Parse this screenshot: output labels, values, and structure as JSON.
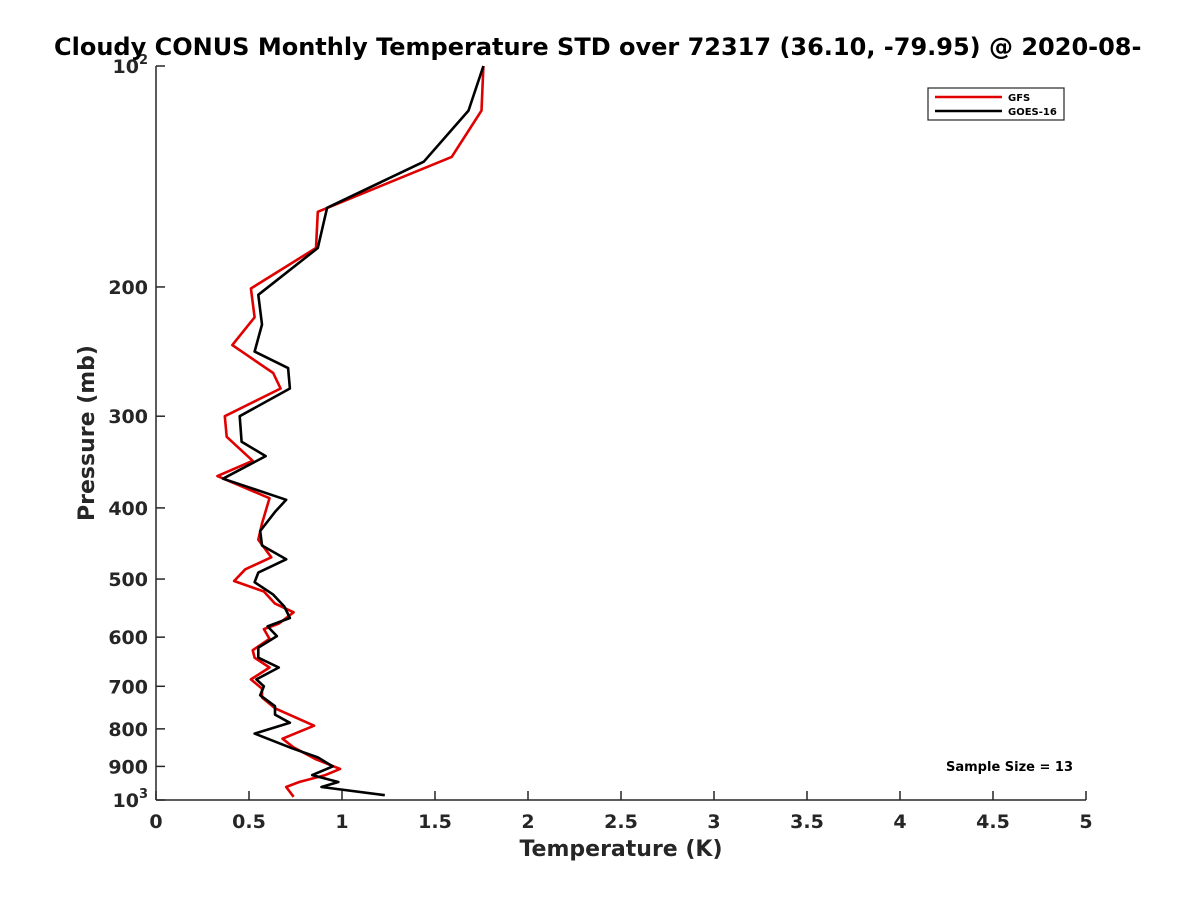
{
  "chart_data": {
    "type": "line",
    "title": "Cloudy CONUS Monthly Temperature STD over 72317 (36.10, -79.95) @ 2020-08-",
    "xlabel": "Temperature (K)",
    "ylabel": "Pressure (mb)",
    "xlim": [
      0,
      5
    ],
    "ylim": [
      100,
      1000
    ],
    "yscale": "log",
    "yreversed": true,
    "x_ticks": [
      "0",
      "0.5",
      "1",
      "1.5",
      "2",
      "2.5",
      "3",
      "3.5",
      "4",
      "4.5",
      "5"
    ],
    "y_ticks": [
      {
        "value": 100,
        "label": "10",
        "exp": "2"
      },
      {
        "value": 200,
        "label": "200"
      },
      {
        "value": 300,
        "label": "300"
      },
      {
        "value": 400,
        "label": "400"
      },
      {
        "value": 500,
        "label": "500"
      },
      {
        "value": 600,
        "label": "600"
      },
      {
        "value": 700,
        "label": "700"
      },
      {
        "value": 800,
        "label": "800"
      },
      {
        "value": 900,
        "label": "900"
      },
      {
        "value": 1000,
        "label": "10",
        "exp": "3"
      }
    ],
    "grid": false,
    "legend_position": "top-right",
    "annotation": "Sample Size = 13",
    "series": [
      {
        "name": "GFS",
        "color": "#e00000",
        "points": [
          [
            1.76,
            100
          ],
          [
            1.75,
            115
          ],
          [
            1.59,
            133
          ],
          [
            0.87,
            158
          ],
          [
            0.86,
            177
          ],
          [
            0.51,
            201
          ],
          [
            0.53,
            220
          ],
          [
            0.41,
            240
          ],
          [
            0.63,
            262
          ],
          [
            0.67,
            275
          ],
          [
            0.37,
            300
          ],
          [
            0.38,
            320
          ],
          [
            0.52,
            345
          ],
          [
            0.33,
            362
          ],
          [
            0.61,
            388
          ],
          [
            0.57,
            420
          ],
          [
            0.55,
            442
          ],
          [
            0.62,
            467
          ],
          [
            0.48,
            485
          ],
          [
            0.42,
            503
          ],
          [
            0.58,
            520
          ],
          [
            0.64,
            540
          ],
          [
            0.74,
            555
          ],
          [
            0.66,
            575
          ],
          [
            0.58,
            585
          ],
          [
            0.61,
            603
          ],
          [
            0.52,
            625
          ],
          [
            0.53,
            640
          ],
          [
            0.61,
            660
          ],
          [
            0.51,
            685
          ],
          [
            0.57,
            705
          ],
          [
            0.57,
            725
          ],
          [
            0.64,
            750
          ],
          [
            0.85,
            792
          ],
          [
            0.68,
            825
          ],
          [
            0.74,
            848
          ],
          [
            0.86,
            880
          ],
          [
            0.99,
            907
          ],
          [
            0.91,
            925
          ],
          [
            0.77,
            945
          ],
          [
            0.7,
            960
          ],
          [
            0.74,
            990
          ]
        ]
      },
      {
        "name": "GOES-16",
        "color": "#000000",
        "points": [
          [
            1.76,
            100
          ],
          [
            1.68,
            115
          ],
          [
            1.44,
            135
          ],
          [
            0.92,
            156
          ],
          [
            0.87,
            177
          ],
          [
            0.55,
            205
          ],
          [
            0.57,
            225
          ],
          [
            0.53,
            245
          ],
          [
            0.71,
            258
          ],
          [
            0.72,
            275
          ],
          [
            0.45,
            300
          ],
          [
            0.46,
            325
          ],
          [
            0.59,
            340
          ],
          [
            0.36,
            365
          ],
          [
            0.7,
            390
          ],
          [
            0.64,
            405
          ],
          [
            0.56,
            430
          ],
          [
            0.57,
            450
          ],
          [
            0.7,
            470
          ],
          [
            0.55,
            490
          ],
          [
            0.53,
            505
          ],
          [
            0.63,
            525
          ],
          [
            0.69,
            545
          ],
          [
            0.72,
            565
          ],
          [
            0.6,
            580
          ],
          [
            0.65,
            598
          ],
          [
            0.55,
            620
          ],
          [
            0.55,
            640
          ],
          [
            0.66,
            660
          ],
          [
            0.54,
            685
          ],
          [
            0.58,
            700
          ],
          [
            0.56,
            720
          ],
          [
            0.64,
            745
          ],
          [
            0.64,
            765
          ],
          [
            0.72,
            785
          ],
          [
            0.53,
            812
          ],
          [
            0.73,
            850
          ],
          [
            0.87,
            875
          ],
          [
            0.95,
            900
          ],
          [
            0.84,
            925
          ],
          [
            0.98,
            945
          ],
          [
            0.89,
            960
          ],
          [
            1.23,
            985
          ]
        ]
      }
    ]
  }
}
